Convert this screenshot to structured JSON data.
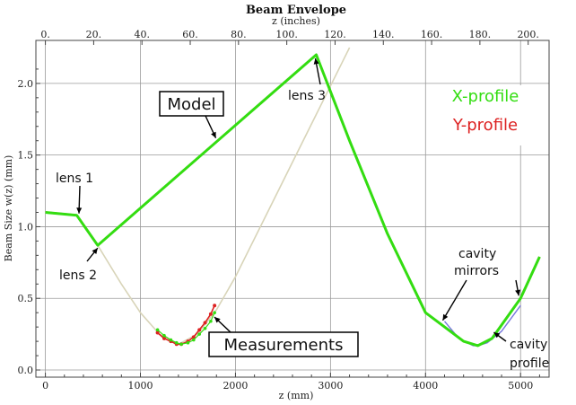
{
  "chart_data": {
    "type": "line",
    "title": "Beam Envelope",
    "subtitle": "z  (inches)",
    "xlabel": "z  (mm)",
    "ylabel": "Beam Size w(z) (mm)",
    "xlim": [
      -100,
      5300
    ],
    "ylim": [
      -0.05,
      2.3
    ],
    "top_xlim": [
      0,
      208.66
    ],
    "grid": true,
    "x_ticks": [
      0,
      1000,
      2000,
      3000,
      4000,
      5000
    ],
    "x_tick_labels": [
      "0",
      "1000",
      "2000",
      "3000",
      "4000",
      "5000"
    ],
    "y_ticks": [
      0.0,
      0.5,
      1.0,
      1.5,
      2.0
    ],
    "y_tick_labels": [
      "0.0",
      "0.5",
      "1.0",
      "1.5",
      "2.0"
    ],
    "top_ticks": [
      0,
      20,
      40,
      60,
      80,
      100,
      120,
      140,
      160,
      180,
      200
    ],
    "top_tick_labels": [
      "0.",
      "20.",
      "40.",
      "60.",
      "80.",
      "100.",
      "120.",
      "140.",
      "160.",
      "180.",
      "200."
    ],
    "series": [
      {
        "name": "X-profile",
        "color": "#33dd11",
        "x": [
          0,
          330,
          550,
          2850,
          3200,
          3600,
          4000,
          4200,
          4400,
          4550,
          4700,
          5000,
          5200
        ],
        "y": [
          1.1,
          1.08,
          0.87,
          2.2,
          1.6,
          0.95,
          0.4,
          0.3,
          0.2,
          0.17,
          0.22,
          0.5,
          0.79
        ]
      },
      {
        "name": "Y-profile",
        "color": "#dd2222",
        "x": [
          0,
          330,
          550,
          2850,
          3200,
          3600,
          4000,
          4200,
          4400,
          4550,
          4700,
          5000,
          5200
        ],
        "y": [
          1.1,
          1.08,
          0.87,
          2.2,
          1.6,
          0.95,
          0.4,
          0.3,
          0.2,
          0.17,
          0.22,
          0.5,
          0.79
        ]
      }
    ],
    "free_space_curve": {
      "color": "#d8d4b8",
      "x": [
        550,
        800,
        1000,
        1200,
        1400,
        1600,
        1800,
        2000,
        2300,
        2600,
        2900,
        3200
      ],
      "y": [
        0.87,
        0.6,
        0.4,
        0.25,
        0.18,
        0.25,
        0.42,
        0.65,
        1.05,
        1.45,
        1.85,
        2.25
      ]
    },
    "cavity_curve": {
      "color": "#7777dd",
      "x": [
        4200,
        4350,
        4500,
        4550,
        4650,
        4800,
        5000
      ],
      "y": [
        0.34,
        0.22,
        0.17,
        0.17,
        0.19,
        0.27,
        0.45
      ]
    },
    "measurements_x": {
      "color": "#33dd11",
      "x": [
        1180,
        1250,
        1320,
        1380,
        1430,
        1500,
        1560,
        1620,
        1680,
        1740,
        1780
      ],
      "y": [
        0.28,
        0.24,
        0.21,
        0.19,
        0.18,
        0.19,
        0.21,
        0.25,
        0.29,
        0.34,
        0.4
      ]
    },
    "measurements_y": {
      "color": "#dd2222",
      "x": [
        1180,
        1250,
        1320,
        1380,
        1430,
        1500,
        1560,
        1620,
        1680,
        1740,
        1780
      ],
      "y": [
        0.26,
        0.22,
        0.2,
        0.18,
        0.18,
        0.2,
        0.23,
        0.28,
        0.33,
        0.39,
        0.45
      ]
    },
    "annotations": [
      {
        "id": "lens1",
        "text": "lens 1",
        "x": 330,
        "y": 1.08
      },
      {
        "id": "lens2",
        "text": "lens 2",
        "x": 550,
        "y": 0.87
      },
      {
        "id": "lens3",
        "text": "lens 3",
        "x": 2850,
        "y": 2.2
      },
      {
        "id": "model",
        "text": "Model",
        "x": 1850,
        "y": 1.65
      },
      {
        "id": "measurements",
        "text": "Measurements",
        "x": 1780,
        "y": 0.4
      },
      {
        "id": "cavity_mirrors_line1",
        "text": "cavity",
        "x": 4200,
        "y": 0.34
      },
      {
        "id": "cavity_mirrors_line2",
        "text": "mirrors",
        "x": 5000,
        "y": 0.5
      },
      {
        "id": "cavity_profile_line1",
        "text": "cavity",
        "x": 4700,
        "y": 0.25
      },
      {
        "id": "cavity_profile_line2",
        "text": "profile",
        "x": 0,
        "y": 0
      }
    ],
    "legend": [
      {
        "text": "X-profile",
        "color": "#33dd11"
      },
      {
        "text": "Y-profile",
        "color": "#dd2222"
      }
    ],
    "legend_position": "right"
  }
}
